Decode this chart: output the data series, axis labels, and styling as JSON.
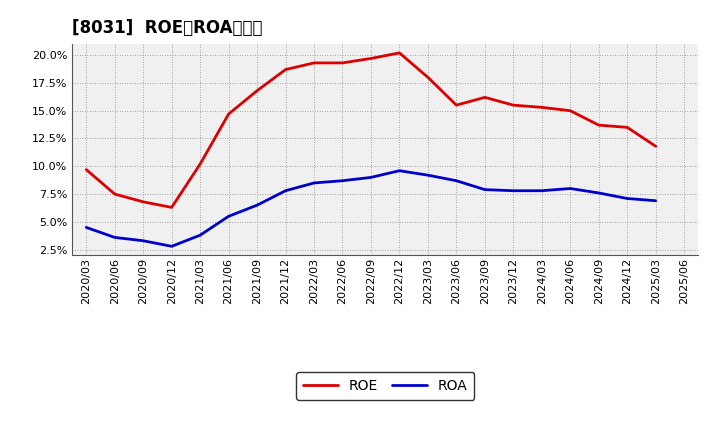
{
  "title": "[8031]  ROE、ROAの推移",
  "x_labels": [
    "2020/03",
    "2020/06",
    "2020/09",
    "2020/12",
    "2021/03",
    "2021/06",
    "2021/09",
    "2021/12",
    "2022/03",
    "2022/06",
    "2022/09",
    "2022/12",
    "2023/03",
    "2023/06",
    "2023/09",
    "2023/12",
    "2024/03",
    "2024/06",
    "2024/09",
    "2024/12",
    "2025/03",
    "2025/06"
  ],
  "roe_values": [
    9.7,
    7.5,
    6.8,
    6.3,
    10.2,
    14.7,
    16.8,
    18.7,
    19.3,
    19.3,
    19.7,
    20.2,
    18.0,
    15.5,
    16.2,
    15.5,
    15.3,
    15.0,
    13.7,
    13.5,
    11.8,
    null
  ],
  "roa_values": [
    4.5,
    3.6,
    3.3,
    2.8,
    3.8,
    5.5,
    6.5,
    7.8,
    8.5,
    8.7,
    9.0,
    9.6,
    9.2,
    8.7,
    7.9,
    7.8,
    7.8,
    8.0,
    7.6,
    7.1,
    6.9,
    null
  ],
  "roe_color": "#dd0000",
  "roa_color": "#0000cc",
  "bg_color": "#ffffff",
  "plot_bg_color": "#f0f0f0",
  "grid_color": "#888888",
  "ylim_min": 2.0,
  "ylim_max": 21.0,
  "yticks": [
    2.5,
    5.0,
    7.5,
    10.0,
    12.5,
    15.0,
    17.5,
    20.0
  ],
  "line_width": 2.0,
  "title_fontsize": 12,
  "legend_fontsize": 10,
  "tick_fontsize": 8
}
